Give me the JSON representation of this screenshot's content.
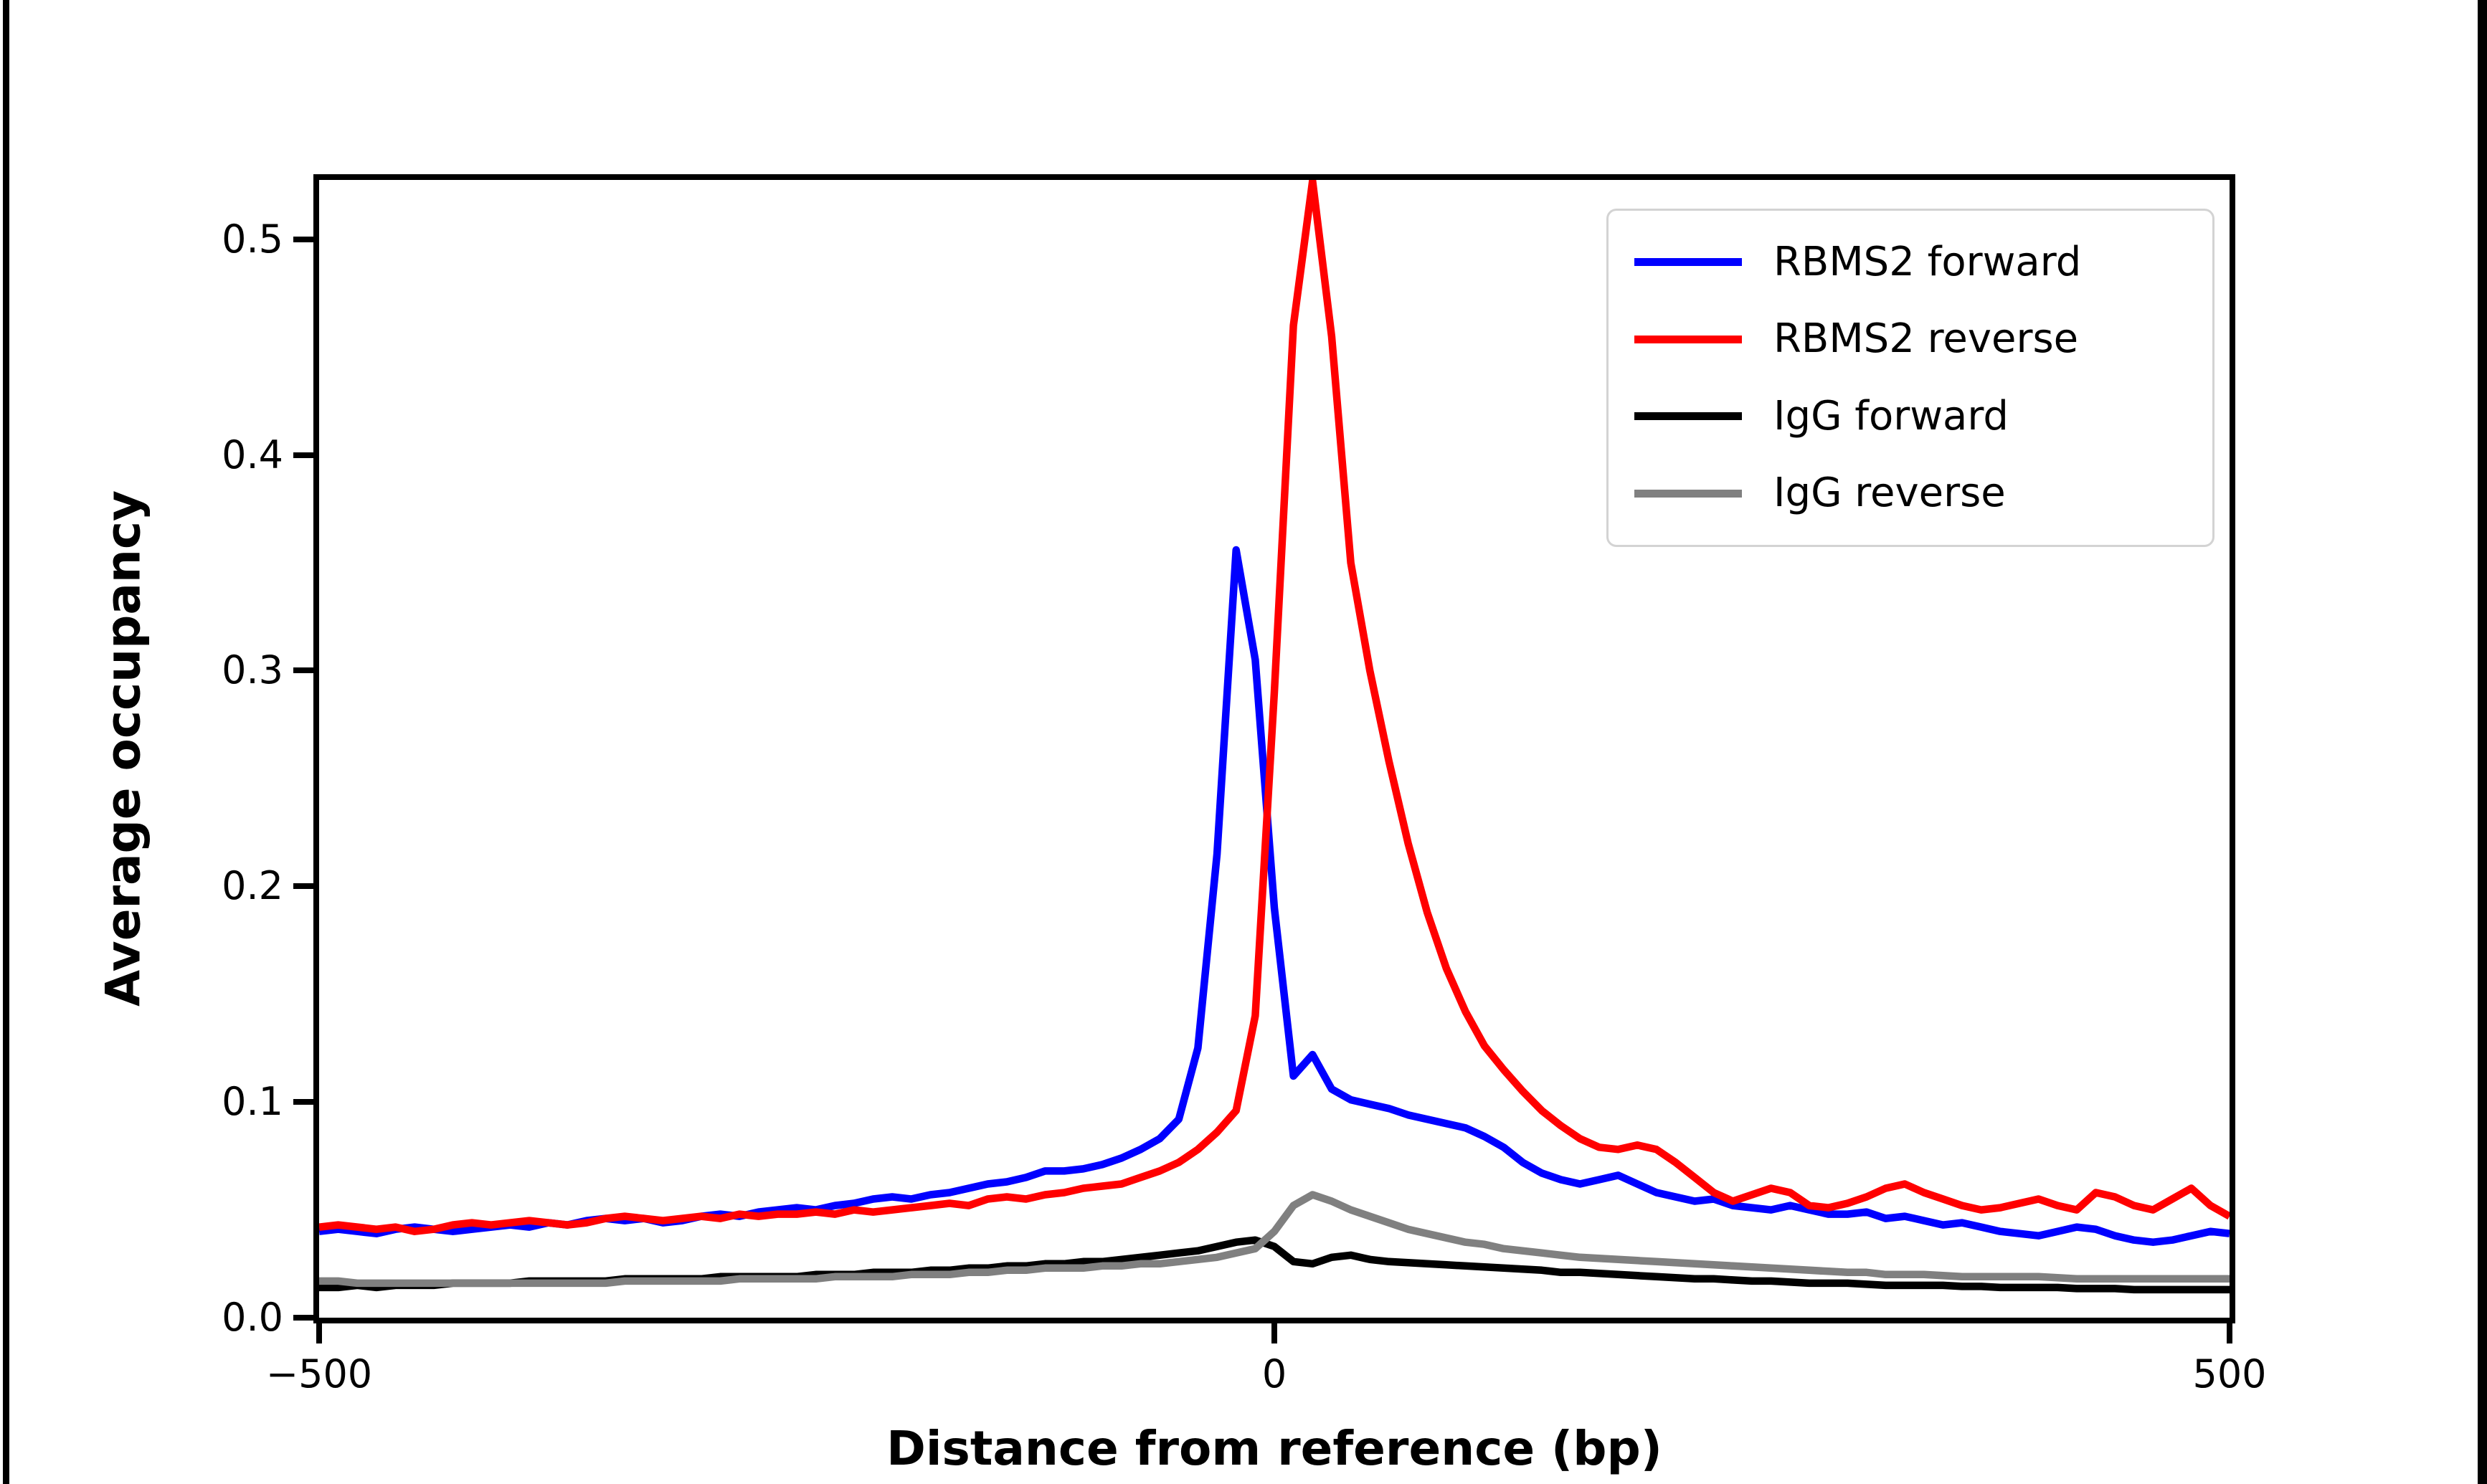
{
  "figure": {
    "background": "#ffffff",
    "edge_bar_color": "#000000"
  },
  "axes": {
    "xlabel": "Distance from reference (bp)",
    "ylabel": "Average occupancy",
    "xlim": [
      -500,
      500
    ],
    "ylim": [
      0,
      0.5275
    ],
    "x_ticks": [
      {
        "value": -500,
        "label": "−500"
      },
      {
        "value": 0,
        "label": "0"
      },
      {
        "value": 500,
        "label": "500"
      }
    ],
    "y_ticks": [
      {
        "value": 0.0,
        "label": "0.0"
      },
      {
        "value": 0.1,
        "label": "0.1"
      },
      {
        "value": 0.2,
        "label": "0.2"
      },
      {
        "value": 0.3,
        "label": "0.3"
      },
      {
        "value": 0.4,
        "label": "0.4"
      },
      {
        "value": 0.5,
        "label": "0.5"
      }
    ],
    "grid": false,
    "spine_color": "#000000"
  },
  "legend": {
    "position": "upper right",
    "border_color": "#d3d3d3",
    "items": [
      {
        "label": "RBMS2 forward",
        "color": "#0000ff"
      },
      {
        "label": "RBMS2 reverse",
        "color": "#ff0000"
      },
      {
        "label": "IgG forward",
        "color": "#000000"
      },
      {
        "label": "IgG reverse",
        "color": "#808080"
      }
    ]
  },
  "chart_data": {
    "type": "line",
    "title": "",
    "xlabel": "Distance from reference (bp)",
    "ylabel": "Average occupancy",
    "xlim": [
      -500,
      500
    ],
    "ylim": [
      0,
      0.5275
    ],
    "grid": false,
    "legend_position": "upper right",
    "x": [
      -500,
      -490,
      -480,
      -470,
      -460,
      -450,
      -440,
      -430,
      -420,
      -410,
      -400,
      -390,
      -380,
      -370,
      -360,
      -350,
      -340,
      -330,
      -320,
      -310,
      -300,
      -290,
      -280,
      -270,
      -260,
      -250,
      -240,
      -230,
      -220,
      -210,
      -200,
      -190,
      -180,
      -170,
      -160,
      -150,
      -140,
      -130,
      -120,
      -110,
      -100,
      -90,
      -80,
      -70,
      -60,
      -50,
      -40,
      -30,
      -20,
      -10,
      0,
      10,
      20,
      30,
      40,
      50,
      60,
      70,
      80,
      90,
      100,
      110,
      120,
      130,
      140,
      150,
      160,
      170,
      180,
      190,
      200,
      210,
      220,
      230,
      240,
      250,
      260,
      270,
      280,
      290,
      300,
      310,
      320,
      330,
      340,
      350,
      360,
      370,
      380,
      390,
      400,
      410,
      420,
      430,
      440,
      450,
      460,
      470,
      480,
      490,
      500
    ],
    "series": [
      {
        "name": "RBMS2 forward",
        "color": "#0000ff",
        "peak": {
          "x": -20,
          "y": 0.356
        },
        "values": [
          0.04,
          0.041,
          0.04,
          0.039,
          0.041,
          0.042,
          0.041,
          0.04,
          0.041,
          0.042,
          0.043,
          0.042,
          0.044,
          0.043,
          0.045,
          0.046,
          0.045,
          0.046,
          0.044,
          0.045,
          0.047,
          0.048,
          0.047,
          0.049,
          0.05,
          0.051,
          0.05,
          0.052,
          0.053,
          0.055,
          0.056,
          0.055,
          0.057,
          0.058,
          0.06,
          0.062,
          0.063,
          0.065,
          0.068,
          0.068,
          0.069,
          0.071,
          0.074,
          0.078,
          0.083,
          0.092,
          0.125,
          0.215,
          0.356,
          0.305,
          0.19,
          0.112,
          0.122,
          0.106,
          0.101,
          0.099,
          0.097,
          0.094,
          0.092,
          0.09,
          0.088,
          0.084,
          0.079,
          0.072,
          0.067,
          0.064,
          0.062,
          0.064,
          0.066,
          0.062,
          0.058,
          0.056,
          0.054,
          0.055,
          0.052,
          0.051,
          0.05,
          0.052,
          0.05,
          0.048,
          0.048,
          0.049,
          0.046,
          0.047,
          0.045,
          0.043,
          0.044,
          0.042,
          0.04,
          0.039,
          0.038,
          0.04,
          0.042,
          0.041,
          0.038,
          0.036,
          0.035,
          0.036,
          0.038,
          0.04,
          0.039
        ]
      },
      {
        "name": "RBMS2 reverse",
        "color": "#ff0000",
        "peak": {
          "x": 20,
          "y": 0.527,
          "clipped_at_top": true
        },
        "values": [
          0.042,
          0.043,
          0.042,
          0.041,
          0.042,
          0.04,
          0.041,
          0.043,
          0.044,
          0.043,
          0.044,
          0.045,
          0.044,
          0.043,
          0.044,
          0.046,
          0.047,
          0.046,
          0.045,
          0.046,
          0.047,
          0.046,
          0.048,
          0.047,
          0.048,
          0.048,
          0.049,
          0.048,
          0.05,
          0.049,
          0.05,
          0.051,
          0.052,
          0.053,
          0.052,
          0.055,
          0.056,
          0.055,
          0.057,
          0.058,
          0.06,
          0.061,
          0.062,
          0.065,
          0.068,
          0.072,
          0.078,
          0.086,
          0.096,
          0.14,
          0.29,
          0.46,
          0.527,
          0.455,
          0.35,
          0.3,
          0.258,
          0.22,
          0.188,
          0.162,
          0.142,
          0.126,
          0.115,
          0.105,
          0.096,
          0.089,
          0.083,
          0.079,
          0.078,
          0.08,
          0.078,
          0.072,
          0.065,
          0.058,
          0.054,
          0.057,
          0.06,
          0.058,
          0.052,
          0.051,
          0.053,
          0.056,
          0.06,
          0.062,
          0.058,
          0.055,
          0.052,
          0.05,
          0.051,
          0.053,
          0.055,
          0.052,
          0.05,
          0.058,
          0.056,
          0.052,
          0.05,
          0.055,
          0.06,
          0.052,
          0.047
        ]
      },
      {
        "name": "IgG forward",
        "color": "#000000",
        "peak": {
          "x": -10,
          "y": 0.036
        },
        "values": [
          0.014,
          0.014,
          0.015,
          0.014,
          0.015,
          0.015,
          0.015,
          0.016,
          0.016,
          0.016,
          0.016,
          0.017,
          0.017,
          0.017,
          0.017,
          0.017,
          0.018,
          0.018,
          0.018,
          0.018,
          0.018,
          0.019,
          0.019,
          0.019,
          0.019,
          0.019,
          0.02,
          0.02,
          0.02,
          0.021,
          0.021,
          0.021,
          0.022,
          0.022,
          0.023,
          0.023,
          0.024,
          0.024,
          0.025,
          0.025,
          0.026,
          0.026,
          0.027,
          0.028,
          0.029,
          0.03,
          0.031,
          0.033,
          0.035,
          0.036,
          0.033,
          0.026,
          0.025,
          0.028,
          0.029,
          0.027,
          0.026,
          0.0255,
          0.025,
          0.0245,
          0.024,
          0.0235,
          0.023,
          0.0225,
          0.022,
          0.021,
          0.021,
          0.0205,
          0.02,
          0.0195,
          0.019,
          0.0185,
          0.018,
          0.018,
          0.0175,
          0.017,
          0.017,
          0.0165,
          0.016,
          0.016,
          0.016,
          0.0155,
          0.015,
          0.015,
          0.015,
          0.015,
          0.0145,
          0.0145,
          0.014,
          0.014,
          0.014,
          0.014,
          0.0135,
          0.0135,
          0.0135,
          0.013,
          0.013,
          0.013,
          0.013,
          0.013,
          0.013
        ]
      },
      {
        "name": "IgG reverse",
        "color": "#808080",
        "peak": {
          "x": 20,
          "y": 0.057
        },
        "values": [
          0.017,
          0.017,
          0.016,
          0.016,
          0.016,
          0.016,
          0.016,
          0.016,
          0.016,
          0.016,
          0.016,
          0.016,
          0.016,
          0.016,
          0.016,
          0.016,
          0.017,
          0.017,
          0.017,
          0.017,
          0.017,
          0.017,
          0.018,
          0.018,
          0.018,
          0.018,
          0.018,
          0.019,
          0.019,
          0.019,
          0.019,
          0.02,
          0.02,
          0.02,
          0.021,
          0.021,
          0.022,
          0.022,
          0.023,
          0.023,
          0.023,
          0.024,
          0.024,
          0.025,
          0.025,
          0.026,
          0.027,
          0.028,
          0.03,
          0.032,
          0.04,
          0.052,
          0.057,
          0.054,
          0.05,
          0.047,
          0.044,
          0.041,
          0.039,
          0.037,
          0.035,
          0.034,
          0.032,
          0.031,
          0.03,
          0.029,
          0.028,
          0.0275,
          0.027,
          0.0265,
          0.026,
          0.0255,
          0.025,
          0.0245,
          0.024,
          0.0235,
          0.023,
          0.0225,
          0.022,
          0.0215,
          0.021,
          0.021,
          0.02,
          0.02,
          0.02,
          0.0195,
          0.019,
          0.019,
          0.019,
          0.019,
          0.019,
          0.0185,
          0.018,
          0.018,
          0.018,
          0.018,
          0.018,
          0.018,
          0.018,
          0.018,
          0.018
        ]
      }
    ]
  }
}
